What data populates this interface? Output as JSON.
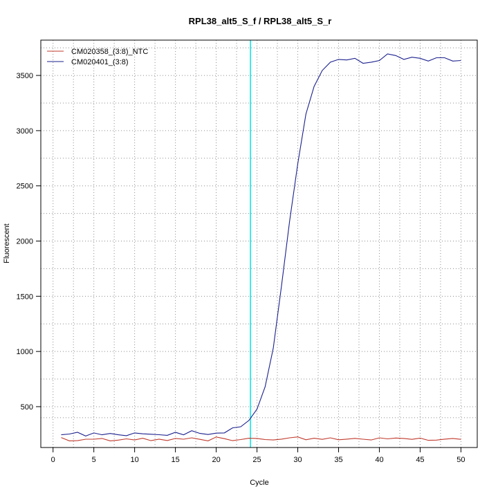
{
  "chart_data": {
    "type": "line",
    "title": "RPL38_alt5_S_f / RPL38_alt5_S_r",
    "xlabel": "Cycle",
    "ylabel": "Fluorescent",
    "xlim": [
      -1.5,
      52
    ],
    "ylim": [
      130,
      3820
    ],
    "x_ticks": [
      0,
      5,
      10,
      15,
      20,
      25,
      30,
      35,
      40,
      45,
      50
    ],
    "y_ticks": [
      500,
      1000,
      1500,
      2000,
      2500,
      3000,
      3500
    ],
    "grid": true,
    "grid_style": "dotted",
    "grid_x": [
      2.5,
      7.5,
      12.5,
      17.5,
      22.5,
      27.5,
      32.5,
      37.5,
      42.5,
      47.5
    ],
    "grid_y": [
      400,
      750,
      1250,
      1750,
      2250,
      2750,
      3250,
      3750
    ],
    "legend_position": "top-left",
    "threshold_cycle": 24.2,
    "threshold_color": "#00e5e5",
    "x": [
      1,
      2,
      3,
      4,
      5,
      6,
      7,
      8,
      9,
      10,
      11,
      12,
      13,
      14,
      15,
      16,
      17,
      18,
      19,
      20,
      21,
      22,
      23,
      24,
      25,
      26,
      27,
      28,
      29,
      30,
      31,
      32,
      33,
      34,
      35,
      36,
      37,
      38,
      39,
      40,
      41,
      42,
      43,
      44,
      45,
      46,
      47,
      48,
      49,
      50
    ],
    "series": [
      {
        "name": "CM020358_(3:8)_NTC",
        "color": "#c0392b",
        "values": [
          220,
          190,
          192,
          205,
          205,
          212,
          190,
          197,
          208,
          198,
          214,
          192,
          206,
          193,
          212,
          205,
          218,
          204,
          190,
          225,
          210,
          192,
          202,
          214,
          212,
          202,
          198,
          206,
          218,
          226,
          200,
          214,
          204,
          218,
          200,
          206,
          213,
          205,
          198,
          218,
          208,
          216,
          212,
          204,
          215,
          195,
          197,
          206,
          212,
          204
        ]
      },
      {
        "name": "CM020401_(3:8)",
        "color": "#1a1f8c",
        "values": [
          245,
          252,
          268,
          234,
          262,
          245,
          257,
          245,
          237,
          262,
          254,
          250,
          246,
          240,
          268,
          245,
          282,
          258,
          248,
          260,
          262,
          308,
          318,
          375,
          478,
          680,
          1030,
          1590,
          2180,
          2700,
          3150,
          3400,
          3545,
          3620,
          3645,
          3640,
          3655,
          3610,
          3620,
          3635,
          3695,
          3680,
          3645,
          3665,
          3655,
          3630,
          3660,
          3660,
          3630,
          3635
        ]
      }
    ]
  }
}
